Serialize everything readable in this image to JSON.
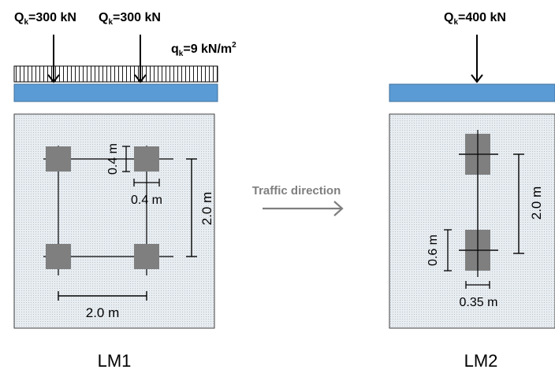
{
  "lm1": {
    "title": "LM1",
    "load_left": "Q",
    "load_left_sub": "k",
    "load_left_val": "=300 kN",
    "load_right": "Q",
    "load_right_sub": "k",
    "load_right_val": "=300 kN",
    "udl": "q",
    "udl_sub": "k",
    "udl_val": "=9 kN/m",
    "udl_sup": "2",
    "dim_vertical": "2.0 m",
    "dim_horizontal": "2.0 m",
    "dim_patch_h": "0.4 m",
    "dim_patch_w": "0.4 m"
  },
  "traffic": {
    "label": "Traffic direction"
  },
  "lm2": {
    "title": "LM2",
    "load": "Q",
    "load_sub": "k",
    "load_val": "=400 kN",
    "dim_vertical": "2.0 m",
    "dim_patch_h": "0.6 m",
    "dim_patch_w": "0.35 m"
  },
  "colors": {
    "beam": "#5b9bd5",
    "beam_border": "#41719c",
    "patch": "#7f7f7f",
    "panel_fill": "#e4eaef",
    "arrow_gray": "#7f7f7f"
  }
}
